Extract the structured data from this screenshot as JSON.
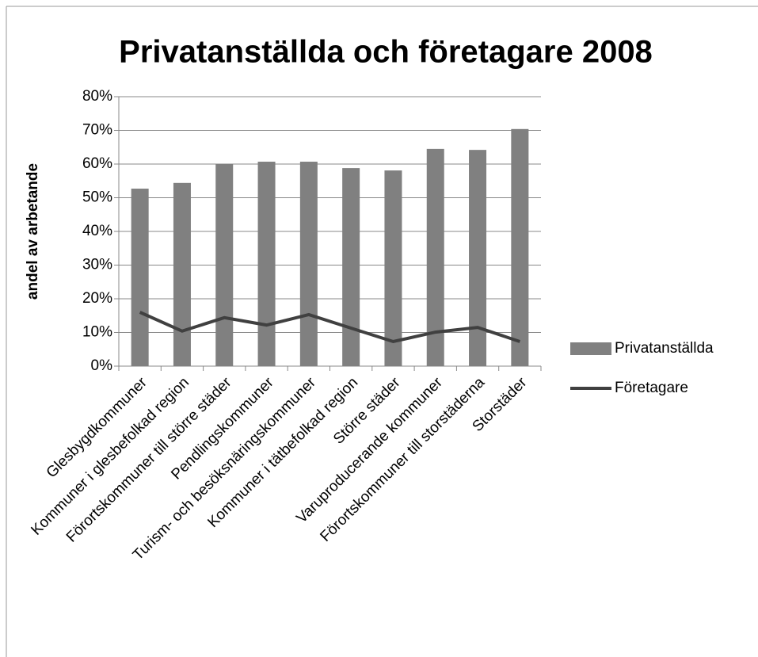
{
  "chart_data": {
    "type": "bar",
    "title": "Privatanställda och företagare 2008",
    "y_axis_label": "andel av arbetande",
    "categories": [
      "Glesbygdkommuner",
      "Kommuner i glesbefolkad region",
      "Förortskommuner till större städer",
      "Pendlingskommuner",
      "Turism- och besöksnäringskommuner",
      "Kommuner i tätbefolkad region",
      "Större städer",
      "Varuproducerande kommuner",
      "Förortskommuner till storstäderna",
      "Storstäder"
    ],
    "series": [
      {
        "name": "Privatanställda",
        "type": "bar",
        "color": "#808080",
        "values": [
          52.7,
          54.4,
          60,
          60.7,
          60.7,
          58.8,
          58.1,
          64.5,
          64.2,
          70.4
        ]
      },
      {
        "name": "Företagare",
        "type": "line",
        "color": "#404040",
        "values": [
          16,
          10.4,
          14.4,
          12.2,
          15.3,
          11.3,
          7.3,
          10.1,
          11.5,
          7.3
        ]
      }
    ],
    "ylim": [
      0,
      80
    ],
    "yticks": [
      {
        "value": 0,
        "label": "0%"
      },
      {
        "value": 10,
        "label": "10%"
      },
      {
        "value": 20,
        "label": "20%"
      },
      {
        "value": 30,
        "label": "30%"
      },
      {
        "value": 40,
        "label": "40%"
      },
      {
        "value": 50,
        "label": "50%"
      },
      {
        "value": 60,
        "label": "60%"
      },
      {
        "value": 70,
        "label": "70%"
      },
      {
        "value": 80,
        "label": "80%"
      }
    ],
    "grid": true,
    "legend": "right"
  }
}
